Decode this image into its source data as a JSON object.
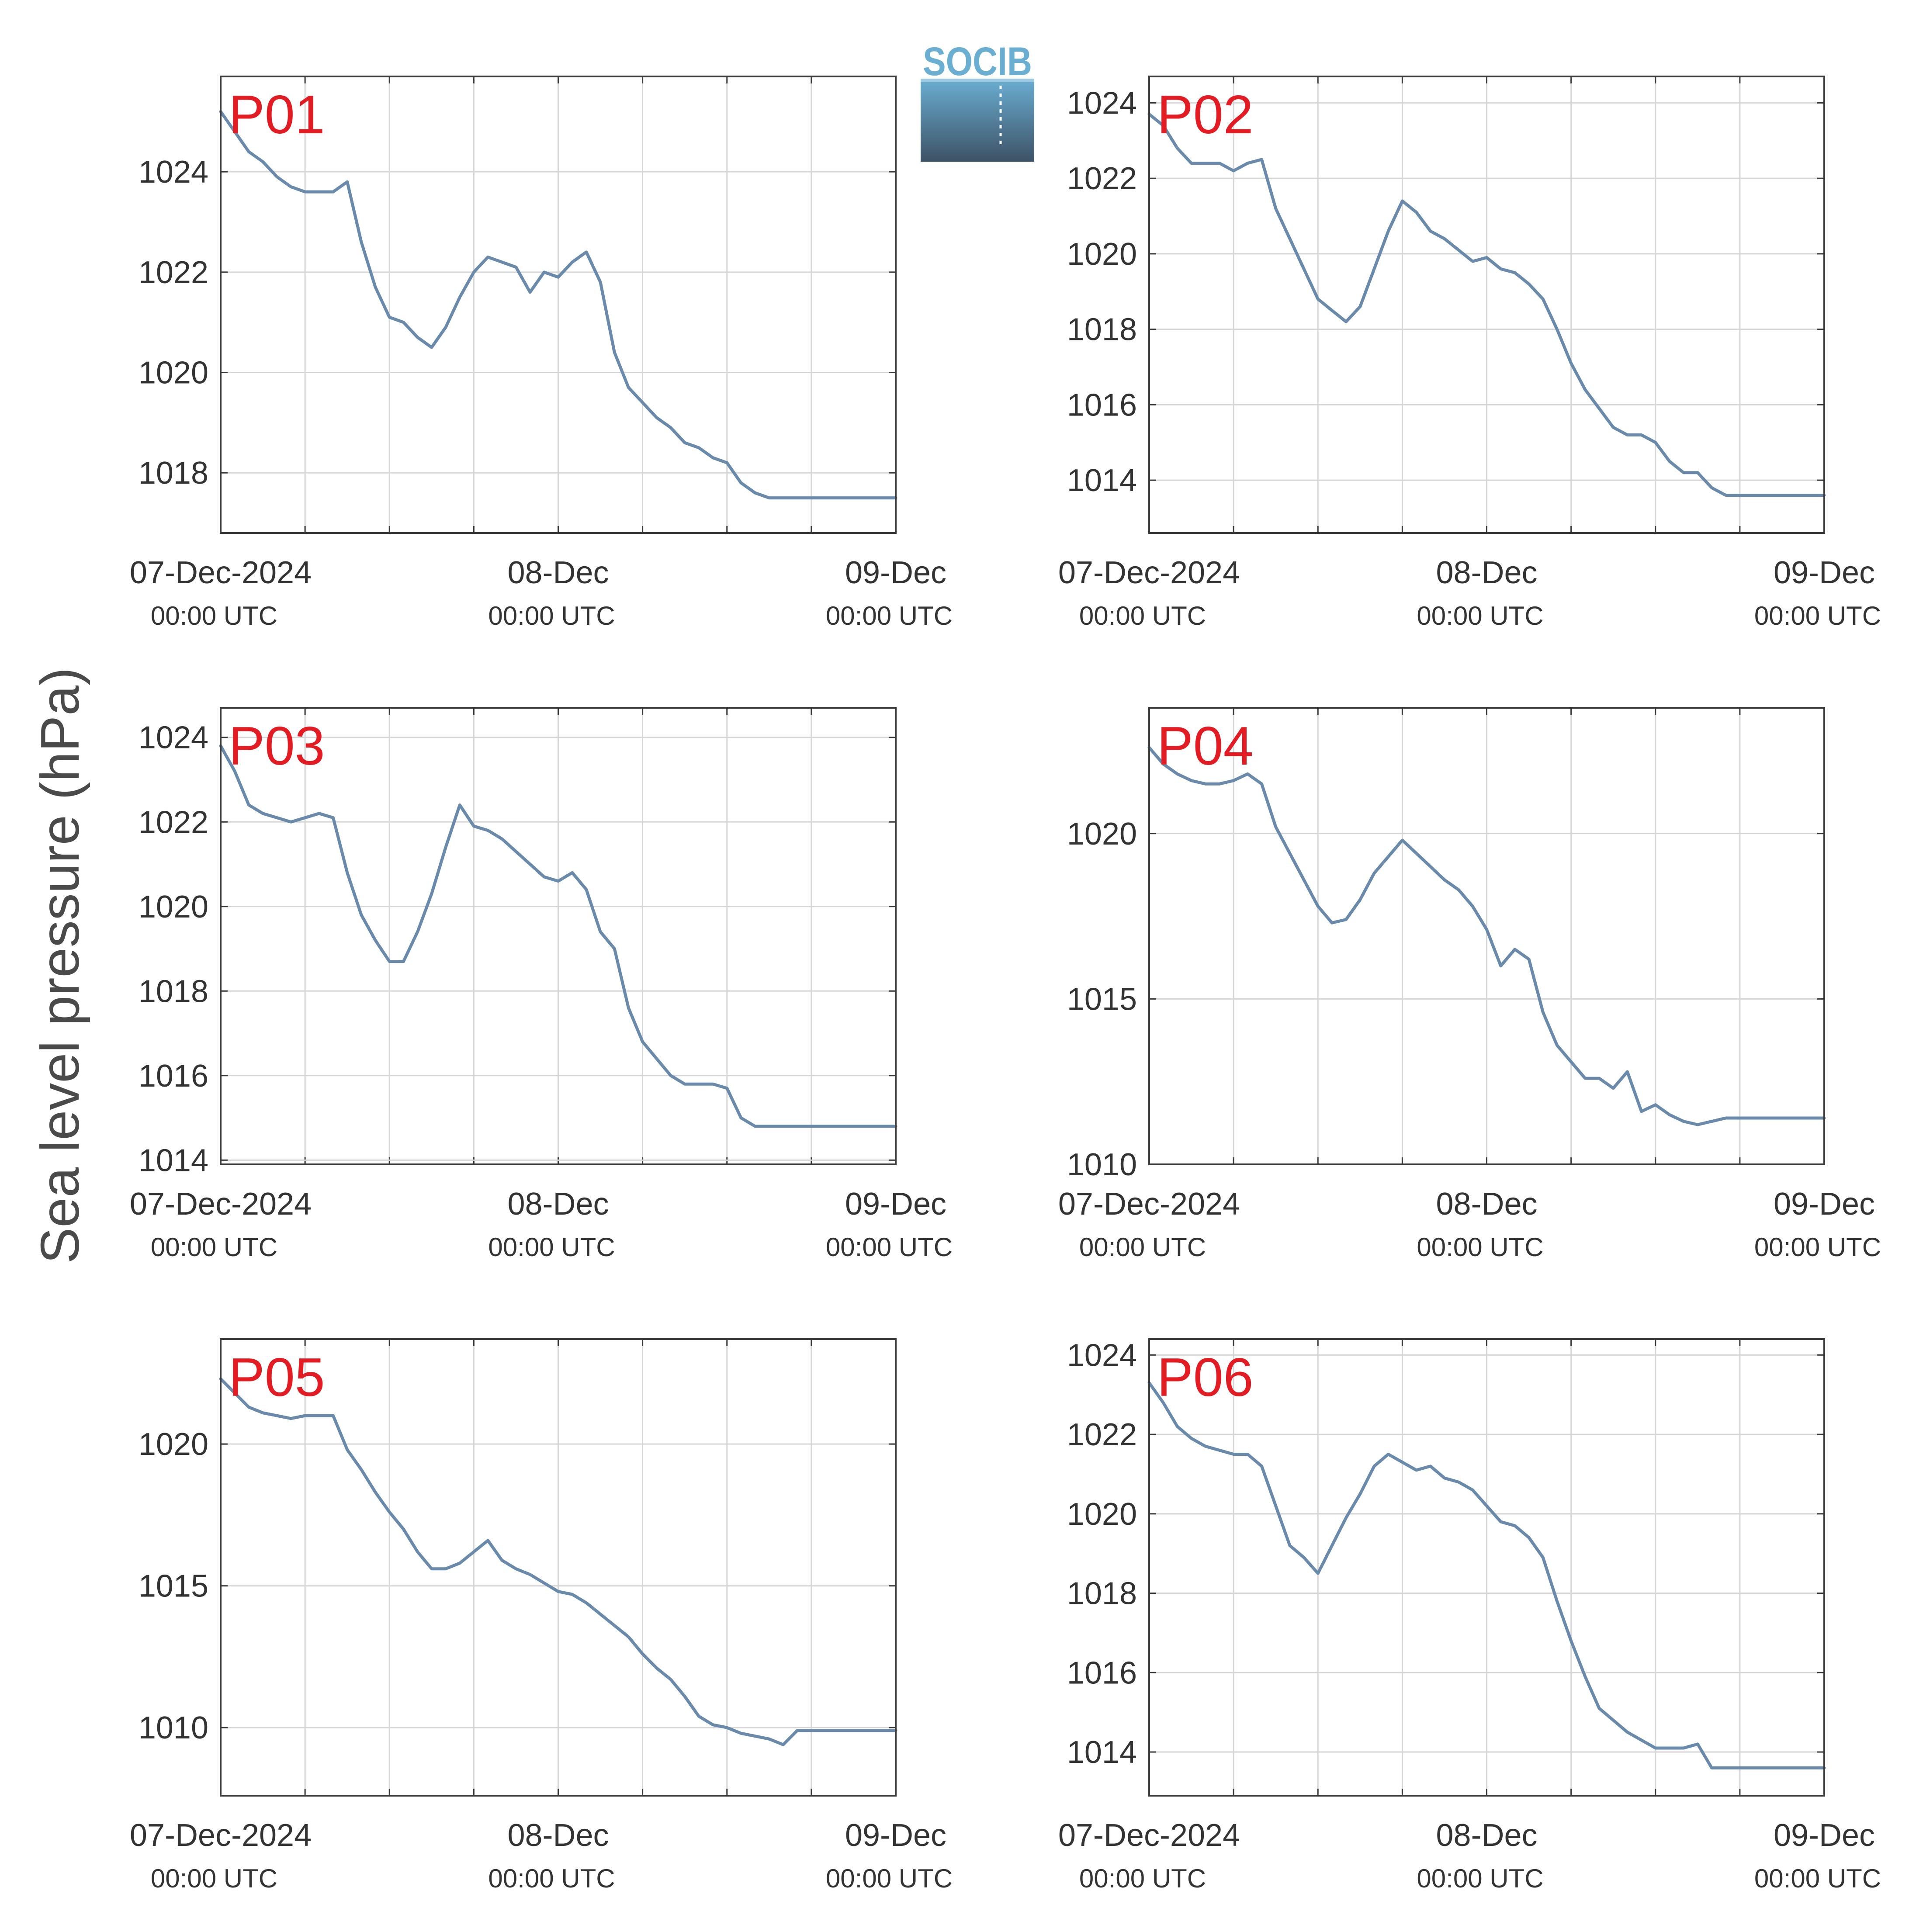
{
  "figure": {
    "ylabel": "Sea level pressure (hPa)",
    "logo_text": "SOCIB",
    "line_color": "#6a8aab",
    "label_color": "#e31b23",
    "grid_color": "#d6d6d6",
    "axis_color": "#3a3a3a",
    "logo_top_color": "#6aaed2",
    "logo_bottom_color": "#3d5266"
  },
  "chart_data": [
    {
      "type": "line",
      "label": "P01",
      "xlim": [
        "2024-12-07 00:00",
        "2024-12-09 00:00"
      ],
      "ylim": [
        1016.8,
        1025.9
      ],
      "yticks": [
        1018,
        1020,
        1022,
        1024
      ],
      "xticks": [
        {
          "date": "2024-12-07 00:00",
          "line1": "07-Dec-2024",
          "line2": "00:00 UTC"
        },
        {
          "date": "2024-12-08 00:00",
          "line1": "08-Dec",
          "line2": "00:00 UTC"
        },
        {
          "date": "2024-12-09 00:00",
          "line1": "09-Dec",
          "line2": "00:00 UTC"
        }
      ],
      "x_hours": [
        0,
        2,
        3,
        4,
        5,
        6,
        7,
        8,
        9,
        10,
        11,
        11.5,
        12,
        13,
        14,
        15,
        16,
        17,
        18,
        19,
        20,
        21,
        22,
        23,
        24,
        25,
        26,
        27,
        28,
        29,
        30,
        31,
        32,
        33,
        34,
        35,
        36,
        37,
        38,
        39,
        40,
        41,
        42,
        43,
        44,
        45,
        46,
        47,
        48
      ],
      "values": [
        1025.2,
        1024.4,
        1024.2,
        1023.9,
        1023.7,
        1023.6,
        1023.6,
        1023.6,
        1023.8,
        1022.6,
        1021.7,
        1021.4,
        1021.1,
        1021.0,
        1020.7,
        1020.5,
        1020.9,
        1021.5,
        1022.0,
        1022.3,
        1022.2,
        1022.1,
        1021.6,
        1022.0,
        1021.9,
        1022.2,
        1022.4,
        1021.8,
        1020.4,
        1019.7,
        1019.4,
        1019.1,
        1018.9,
        1018.6,
        1018.5,
        1018.3,
        1018.2,
        1017.8,
        1017.6,
        1017.5,
        1017.5,
        1017.5,
        1017.5,
        1017.5,
        1017.5,
        1017.5,
        1017.5,
        1017.5,
        1017.5
      ]
    },
    {
      "type": "line",
      "label": "P02",
      "xlim": [
        "2024-12-07 00:00",
        "2024-12-09 00:00"
      ],
      "ylim": [
        1012.6,
        1024.7
      ],
      "yticks": [
        1014,
        1016,
        1018,
        1020,
        1022,
        1024
      ],
      "xticks": [
        {
          "date": "2024-12-07 00:00",
          "line1": "07-Dec-2024",
          "line2": "00:00 UTC"
        },
        {
          "date": "2024-12-08 00:00",
          "line1": "08-Dec",
          "line2": "00:00 UTC"
        },
        {
          "date": "2024-12-09 00:00",
          "line1": "09-Dec",
          "line2": "00:00 UTC"
        }
      ],
      "x_hours": [
        0,
        1,
        2,
        3,
        4,
        5,
        6,
        7,
        8,
        9,
        10,
        11,
        12,
        13,
        14,
        15,
        16,
        17,
        18,
        19,
        20,
        21,
        22,
        23,
        24,
        25,
        26,
        27,
        28,
        29,
        30,
        31,
        32,
        33,
        34,
        35,
        36,
        37,
        38,
        39,
        40,
        41,
        42,
        43,
        44,
        45,
        46,
        47,
        48
      ],
      "values": [
        1023.7,
        1023.4,
        1022.8,
        1022.4,
        1022.4,
        1022.4,
        1022.2,
        1022.4,
        1022.5,
        1021.2,
        1020.4,
        1019.6,
        1018.8,
        1018.5,
        1018.2,
        1018.6,
        1019.6,
        1020.6,
        1021.4,
        1021.1,
        1020.6,
        1020.4,
        1020.1,
        1019.8,
        1019.9,
        1019.6,
        1019.5,
        1019.2,
        1018.8,
        1018.0,
        1017.1,
        1016.4,
        1015.9,
        1015.4,
        1015.2,
        1015.2,
        1015.0,
        1014.5,
        1014.2,
        1014.2,
        1013.8,
        1013.6,
        1013.6,
        1013.6,
        1013.6,
        1013.6,
        1013.6,
        1013.6,
        1013.6
      ]
    },
    {
      "type": "line",
      "label": "P03",
      "xlim": [
        "2024-12-07 00:00",
        "2024-12-09 00:00"
      ],
      "ylim": [
        1013.9,
        1024.7
      ],
      "yticks": [
        1014,
        1016,
        1018,
        1020,
        1022,
        1024
      ],
      "xticks": [
        {
          "date": "2024-12-07 00:00",
          "line1": "07-Dec-2024",
          "line2": "00:00 UTC"
        },
        {
          "date": "2024-12-08 00:00",
          "line1": "08-Dec",
          "line2": "00:00 UTC"
        },
        {
          "date": "2024-12-09 00:00",
          "line1": "09-Dec",
          "line2": "00:00 UTC"
        }
      ],
      "x_hours": [
        0,
        1,
        2,
        3,
        4,
        5,
        6,
        7,
        8,
        9,
        10,
        11,
        12,
        13,
        14,
        15,
        16,
        17,
        18,
        19,
        20,
        21,
        22,
        23,
        24,
        25,
        26,
        27,
        28,
        29,
        30,
        31,
        32,
        33,
        34,
        35,
        36,
        37,
        38,
        39,
        40,
        41,
        42,
        43,
        44,
        45,
        46,
        47,
        48
      ],
      "values": [
        1023.8,
        1023.2,
        1022.4,
        1022.2,
        1022.1,
        1022.0,
        1022.1,
        1022.2,
        1022.1,
        1020.8,
        1019.8,
        1019.2,
        1018.7,
        1018.7,
        1019.4,
        1020.3,
        1021.4,
        1022.4,
        1021.9,
        1021.8,
        1021.6,
        1021.3,
        1021.0,
        1020.7,
        1020.6,
        1020.8,
        1020.4,
        1019.4,
        1019.0,
        1017.6,
        1016.8,
        1016.4,
        1016.0,
        1015.8,
        1015.8,
        1015.8,
        1015.7,
        1015.0,
        1014.8,
        1014.8,
        1014.8,
        1014.8,
        1014.8,
        1014.8,
        1014.8,
        1014.8,
        1014.8,
        1014.8,
        1014.8
      ]
    },
    {
      "type": "line",
      "label": "P04",
      "xlim": [
        "2024-12-07 00:00",
        "2024-12-09 00:00"
      ],
      "ylim": [
        1010.0,
        1023.8
      ],
      "yticks": [
        1010,
        1015,
        1020
      ],
      "xticks": [
        {
          "date": "2024-12-07 00:00",
          "line1": "07-Dec-2024",
          "line2": "00:00 UTC"
        },
        {
          "date": "2024-12-08 00:00",
          "line1": "08-Dec",
          "line2": "00:00 UTC"
        },
        {
          "date": "2024-12-09 00:00",
          "line1": "09-Dec",
          "line2": "00:00 UTC"
        }
      ],
      "x_hours": [
        0,
        1,
        2,
        3,
        4,
        5,
        6,
        7,
        8,
        9,
        10,
        11,
        12,
        13,
        14,
        15,
        16,
        17,
        18,
        19,
        20,
        21,
        22,
        23,
        24,
        25,
        26,
        27,
        28,
        29,
        30,
        31,
        32,
        33,
        34,
        35,
        36,
        37,
        38,
        39,
        40,
        41,
        42,
        43,
        44,
        45,
        46,
        47,
        48
      ],
      "values": [
        1022.6,
        1022.1,
        1021.8,
        1021.6,
        1021.5,
        1021.5,
        1021.6,
        1021.8,
        1021.5,
        1020.2,
        1019.4,
        1018.6,
        1017.8,
        1017.3,
        1017.4,
        1018.0,
        1018.8,
        1019.3,
        1019.8,
        1019.4,
        1019.0,
        1018.6,
        1018.3,
        1017.8,
        1017.1,
        1016.0,
        1016.5,
        1016.2,
        1014.6,
        1013.6,
        1013.1,
        1012.6,
        1012.6,
        1012.3,
        1012.8,
        1011.6,
        1011.8,
        1011.5,
        1011.3,
        1011.2,
        1011.3,
        1011.4,
        1011.4,
        1011.4,
        1011.4,
        1011.4,
        1011.4,
        1011.4,
        1011.4
      ]
    },
    {
      "type": "line",
      "label": "P05",
      "xlim": [
        "2024-12-07 00:00",
        "2024-12-09 00:00"
      ],
      "ylim": [
        1007.6,
        1023.7
      ],
      "yticks": [
        1010,
        1015,
        1020
      ],
      "xticks": [
        {
          "date": "2024-12-07 00:00",
          "line1": "07-Dec-2024",
          "line2": "00:00 UTC"
        },
        {
          "date": "2024-12-08 00:00",
          "line1": "08-Dec",
          "line2": "00:00 UTC"
        },
        {
          "date": "2024-12-09 00:00",
          "line1": "09-Dec",
          "line2": "00:00 UTC"
        }
      ],
      "x_hours": [
        0,
        1,
        2,
        3,
        4,
        5,
        6,
        7,
        8,
        9,
        10,
        11,
        12,
        13,
        14,
        15,
        16,
        17,
        18,
        19,
        20,
        21,
        22,
        23,
        24,
        25,
        26,
        27,
        28,
        29,
        30,
        31,
        32,
        33,
        34,
        35,
        36,
        37,
        38,
        39,
        40,
        41,
        42,
        43,
        44,
        45,
        46,
        47,
        48
      ],
      "values": [
        1022.3,
        1021.8,
        1021.3,
        1021.1,
        1021.0,
        1020.9,
        1021.0,
        1021.0,
        1021.0,
        1019.8,
        1019.1,
        1018.3,
        1017.6,
        1017.0,
        1016.2,
        1015.6,
        1015.6,
        1015.8,
        1016.2,
        1016.6,
        1015.9,
        1015.6,
        1015.4,
        1015.1,
        1014.8,
        1014.7,
        1014.4,
        1014.0,
        1013.6,
        1013.2,
        1012.6,
        1012.1,
        1011.7,
        1011.1,
        1010.4,
        1010.1,
        1010.0,
        1009.8,
        1009.7,
        1009.6,
        1009.4,
        1009.9,
        1009.9,
        1009.9,
        1009.9,
        1009.9,
        1009.9,
        1009.9,
        1009.9
      ]
    },
    {
      "type": "line",
      "label": "P06",
      "xlim": [
        "2024-12-07 00:00",
        "2024-12-09 00:00"
      ],
      "ylim": [
        1012.9,
        1024.4
      ],
      "yticks": [
        1014,
        1016,
        1018,
        1020,
        1022,
        1024
      ],
      "xticks": [
        {
          "date": "2024-12-07 00:00",
          "line1": "07-Dec-2024",
          "line2": "00:00 UTC"
        },
        {
          "date": "2024-12-08 00:00",
          "line1": "08-Dec",
          "line2": "00:00 UTC"
        },
        {
          "date": "2024-12-09 00:00",
          "line1": "09-Dec",
          "line2": "00:00 UTC"
        }
      ],
      "x_hours": [
        0,
        1,
        2,
        3,
        4,
        5,
        6,
        7,
        8,
        9,
        10,
        11,
        12,
        13,
        14,
        15,
        16,
        17,
        18,
        19,
        20,
        21,
        22,
        23,
        24,
        25,
        26,
        27,
        28,
        29,
        30,
        31,
        32,
        33,
        34,
        35,
        36,
        37,
        38,
        39,
        40,
        41,
        42,
        43,
        44,
        45,
        46,
        47,
        48
      ],
      "values": [
        1023.3,
        1022.8,
        1022.2,
        1021.9,
        1021.7,
        1021.6,
        1021.5,
        1021.5,
        1021.2,
        1020.2,
        1019.2,
        1018.9,
        1018.5,
        1019.2,
        1019.9,
        1020.5,
        1021.2,
        1021.5,
        1021.3,
        1021.1,
        1021.2,
        1020.9,
        1020.8,
        1020.6,
        1020.2,
        1019.8,
        1019.7,
        1019.4,
        1018.9,
        1017.8,
        1016.8,
        1015.9,
        1015.1,
        1014.8,
        1014.5,
        1014.3,
        1014.1,
        1014.1,
        1014.1,
        1014.2,
        1013.6,
        1013.6,
        1013.6,
        1013.6,
        1013.6,
        1013.6,
        1013.6,
        1013.6,
        1013.6
      ]
    }
  ]
}
